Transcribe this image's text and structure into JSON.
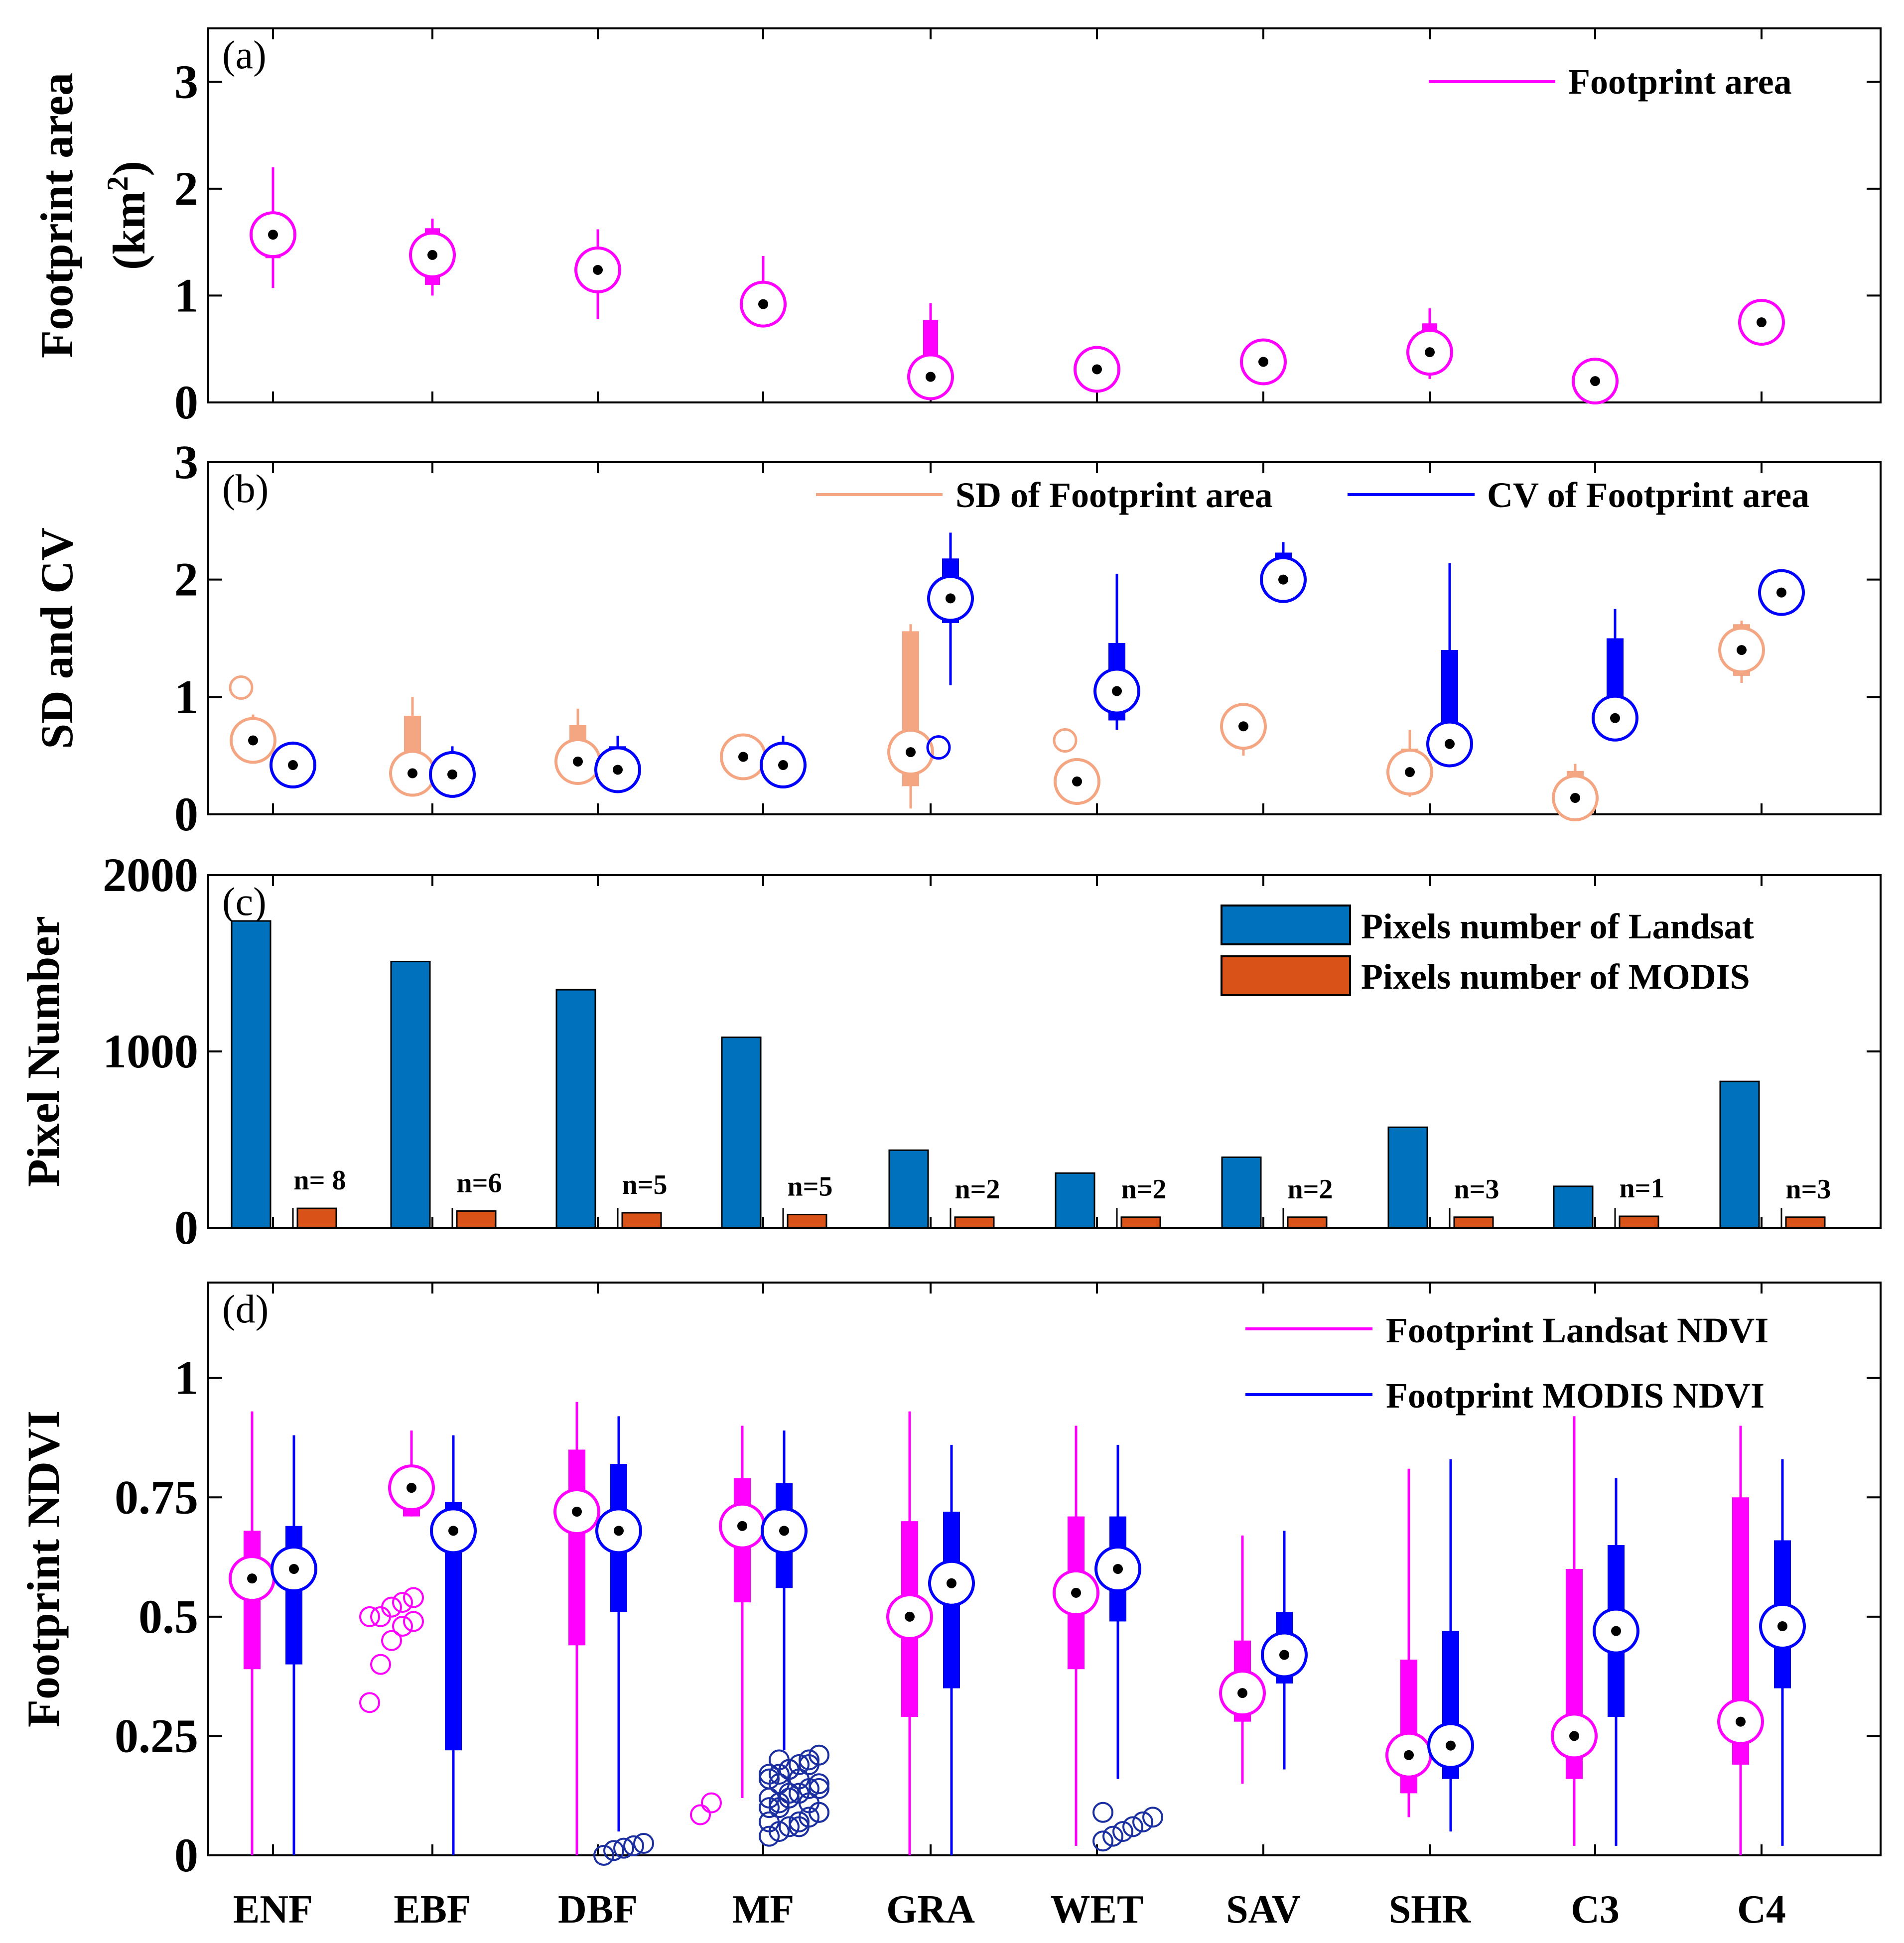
{
  "colors": {
    "fp_area": "#ff00ff",
    "sd": "#f4a582",
    "cv": "#0000ff",
    "cv_dark": "#0a1d8f",
    "landsat_bar": "#0072bd",
    "modis_bar": "#d95319",
    "ndvi_landsat": "#ff00ff",
    "ndvi_modis": "#0000ff",
    "modis_outlier": "#1b2fa0"
  },
  "chart_data": [
    {
      "type": "box",
      "panel_label": "(a)",
      "ylabel_line1": "Footprint area",
      "ylabel_line2": "(km",
      "ylabel_sup": "2",
      "ylabel_close": ")",
      "ylim": [
        0,
        3.5
      ],
      "yticks": [
        0,
        1,
        2,
        3
      ],
      "categories": [
        "ENF",
        "EBF",
        "DBF",
        "MF",
        "GRA",
        "WET",
        "SAV",
        "SHR",
        "C3",
        "C4"
      ],
      "legend": [
        {
          "label": "Footprint area",
          "color": "#ff00ff"
        }
      ],
      "series": [
        {
          "name": "Footprint area",
          "color": "#ff00ff",
          "boxes": [
            {
              "cat": 0,
              "wmin": 1.07,
              "q1": 1.35,
              "median": 1.57,
              "q3": 1.72,
              "wmax": 2.2
            },
            {
              "cat": 1,
              "wmin": 1.0,
              "q1": 1.1,
              "median": 1.38,
              "q3": 1.63,
              "wmax": 1.72
            },
            {
              "cat": 2,
              "wmin": 0.78,
              "q1": 1.05,
              "median": 1.24,
              "q3": 1.33,
              "wmax": 1.62
            },
            {
              "cat": 3,
              "wmin": 0.76,
              "q1": 0.83,
              "median": 0.92,
              "q3": 1.1,
              "wmax": 1.37
            },
            {
              "cat": 4,
              "wmin": 0.2,
              "q1": 0.23,
              "median": 0.24,
              "q3": 0.77,
              "wmax": 0.93
            },
            {
              "cat": 5,
              "wmin": 0.31,
              "q1": 0.31,
              "median": 0.31,
              "q3": 0.31,
              "wmax": 0.31
            },
            {
              "cat": 6,
              "wmin": 0.38,
              "q1": 0.38,
              "median": 0.38,
              "q3": 0.38,
              "wmax": 0.38
            },
            {
              "cat": 7,
              "wmin": 0.22,
              "q1": 0.27,
              "median": 0.47,
              "q3": 0.74,
              "wmax": 0.88
            },
            {
              "cat": 8,
              "wmin": 0.2,
              "q1": 0.2,
              "median": 0.2,
              "q3": 0.2,
              "wmax": 0.2
            },
            {
              "cat": 9,
              "wmin": 0.75,
              "q1": 0.75,
              "median": 0.75,
              "q3": 0.75,
              "wmax": 0.75
            }
          ]
        }
      ]
    },
    {
      "type": "box",
      "panel_label": "(b)",
      "ylabel": "SD and CV",
      "ylim": [
        0,
        3
      ],
      "yticks": [
        0,
        1,
        2,
        3
      ],
      "categories": [
        "ENF",
        "EBF",
        "DBF",
        "MF",
        "GRA",
        "WET",
        "SAV",
        "SHR",
        "C3",
        "C4"
      ],
      "legend": [
        {
          "label": "SD of Footprint area",
          "color": "#f4a582"
        },
        {
          "label": "CV of Footprint area",
          "color": "#0000ff"
        }
      ],
      "series": [
        {
          "name": "SD of Footprint area",
          "color": "#f4a582",
          "boxes": [
            {
              "cat": 0,
              "wmin": 0.55,
              "q1": 0.57,
              "median": 0.63,
              "q3": 0.66,
              "wmax": 0.85,
              "outliers": [
                1.08
              ]
            },
            {
              "cat": 1,
              "wmin": 0.3,
              "q1": 0.33,
              "median": 0.35,
              "q3": 0.84,
              "wmax": 1.0
            },
            {
              "cat": 2,
              "wmin": 0.4,
              "q1": 0.43,
              "median": 0.45,
              "q3": 0.76,
              "wmax": 0.9
            },
            {
              "cat": 3,
              "wmin": 0.3,
              "q1": 0.35,
              "median": 0.49,
              "q3": 0.52,
              "wmax": 0.55
            },
            {
              "cat": 4,
              "wmin": 0.05,
              "q1": 0.24,
              "median": 0.53,
              "q3": 1.56,
              "wmax": 1.62
            },
            {
              "cat": 5,
              "wmin": 0.28,
              "q1": 0.28,
              "median": 0.28,
              "q3": 0.28,
              "wmax": 0.28,
              "outliers": [
                0.63
              ]
            },
            {
              "cat": 6,
              "wmin": 0.5,
              "q1": 0.56,
              "median": 0.75,
              "q3": 0.9,
              "wmax": 0.95
            },
            {
              "cat": 7,
              "wmin": 0.15,
              "q1": 0.22,
              "median": 0.36,
              "q3": 0.56,
              "wmax": 0.72
            },
            {
              "cat": 8,
              "wmin": 0.1,
              "q1": 0.12,
              "median": 0.14,
              "q3": 0.37,
              "wmax": 0.43
            },
            {
              "cat": 9,
              "wmin": 1.12,
              "q1": 1.18,
              "median": 1.4,
              "q3": 1.62,
              "wmax": 1.65
            }
          ]
        },
        {
          "name": "CV of Footprint area",
          "color": "#0000ff",
          "boxes": [
            {
              "cat": 0,
              "wmin": 0.38,
              "q1": 0.39,
              "median": 0.42,
              "q3": 0.45,
              "wmax": 0.62
            },
            {
              "cat": 1,
              "wmin": 0.28,
              "q1": 0.3,
              "median": 0.34,
              "q3": 0.52,
              "wmax": 0.58
            },
            {
              "cat": 2,
              "wmin": 0.35,
              "q1": 0.36,
              "median": 0.38,
              "q3": 0.58,
              "wmax": 0.67
            },
            {
              "cat": 3,
              "wmin": 0.38,
              "q1": 0.4,
              "median": 0.42,
              "q3": 0.52,
              "wmax": 0.67
            },
            {
              "cat": 4,
              "wmin": 1.1,
              "q1": 1.63,
              "median": 1.84,
              "q3": 2.18,
              "wmax": 2.4,
              "outliers": [
                0.57
              ]
            },
            {
              "cat": 5,
              "wmin": 0.72,
              "q1": 0.8,
              "median": 1.05,
              "q3": 1.46,
              "wmax": 2.05
            },
            {
              "cat": 6,
              "wmin": 1.8,
              "q1": 1.85,
              "median": 2.0,
              "q3": 2.23,
              "wmax": 2.32
            },
            {
              "cat": 7,
              "wmin": 0.47,
              "q1": 0.52,
              "median": 0.6,
              "q3": 1.4,
              "wmax": 2.14
            },
            {
              "cat": 8,
              "wmin": 0.76,
              "q1": 0.78,
              "median": 0.82,
              "q3": 1.5,
              "wmax": 1.75
            },
            {
              "cat": 9,
              "wmin": 1.78,
              "q1": 1.8,
              "median": 1.89,
              "q3": 1.98,
              "wmax": 2.0
            }
          ]
        }
      ]
    },
    {
      "type": "bar",
      "panel_label": "(c)",
      "ylabel": "Pixel Number",
      "ylim": [
        0,
        2000
      ],
      "yticks": [
        0,
        1000,
        2000
      ],
      "categories": [
        "ENF",
        "EBF",
        "DBF",
        "MF",
        "GRA",
        "WET",
        "SAV",
        "SHR",
        "C3",
        "C4"
      ],
      "legend": [
        {
          "label": "Pixels number of Landsat",
          "color": "#0072bd"
        },
        {
          "label": "Pixels number of MODIS",
          "color": "#d95319"
        }
      ],
      "series": [
        {
          "name": "Pixels number of Landsat",
          "color": "#0072bd",
          "values": [
            1740,
            1510,
            1350,
            1080,
            440,
            310,
            400,
            570,
            235,
            830
          ]
        },
        {
          "name": "Pixels number of MODIS",
          "color": "#d95319",
          "values": [
            110,
            95,
            85,
            75,
            60,
            60,
            60,
            60,
            65,
            60
          ]
        }
      ],
      "annotations": [
        "n= 8",
        "n=6",
        "n=5",
        "n=5",
        "n=2",
        "n=2",
        "n=2",
        "n=3",
        "n=1",
        "n=3"
      ]
    },
    {
      "type": "box",
      "panel_label": "(d)",
      "ylabel": "Footprint NDVI",
      "ylim": [
        0,
        1.2
      ],
      "yticks": [
        0,
        0.25,
        0.5,
        0.75,
        1
      ],
      "ytick_labels": [
        "0",
        "0.25",
        "0.5",
        "0.75",
        "1"
      ],
      "categories": [
        "ENF",
        "EBF",
        "DBF",
        "MF",
        "GRA",
        "WET",
        "SAV",
        "SHR",
        "C3",
        "C4"
      ],
      "legend": [
        {
          "label": "Footprint Landsat NDVI",
          "color": "#ff00ff"
        },
        {
          "label": "Footprint MODIS NDVI",
          "color": "#0000ff"
        }
      ],
      "series": [
        {
          "name": "Footprint Landsat NDVI",
          "color": "#ff00ff",
          "boxes": [
            {
              "cat": 0,
              "wmin": 0.0,
              "q1": 0.39,
              "median": 0.58,
              "q3": 0.68,
              "wmax": 0.93
            },
            {
              "cat": 1,
              "wmin": 0.71,
              "q1": 0.71,
              "median": 0.77,
              "q3": 0.81,
              "wmax": 0.89,
              "outliers": [
                0.32,
                0.4,
                0.45,
                0.48,
                0.49,
                0.5,
                0.5,
                0.52,
                0.53,
                0.54
              ]
            },
            {
              "cat": 2,
              "wmin": 0.0,
              "q1": 0.44,
              "median": 0.72,
              "q3": 0.85,
              "wmax": 0.95
            },
            {
              "cat": 3,
              "wmin": 0.12,
              "q1": 0.53,
              "median": 0.69,
              "q3": 0.79,
              "wmax": 0.9,
              "outliers": [
                0.085,
                0.11
              ]
            },
            {
              "cat": 4,
              "wmin": 0.0,
              "q1": 0.29,
              "median": 0.5,
              "q3": 0.7,
              "wmax": 0.93
            },
            {
              "cat": 5,
              "wmin": 0.02,
              "q1": 0.39,
              "median": 0.55,
              "q3": 0.71,
              "wmax": 0.9
            },
            {
              "cat": 6,
              "wmin": 0.15,
              "q1": 0.28,
              "median": 0.34,
              "q3": 0.45,
              "wmax": 0.67
            },
            {
              "cat": 7,
              "wmin": 0.08,
              "q1": 0.13,
              "median": 0.21,
              "q3": 0.41,
              "wmax": 0.81
            },
            {
              "cat": 8,
              "wmin": 0.02,
              "q1": 0.16,
              "median": 0.25,
              "q3": 0.6,
              "wmax": 0.92
            },
            {
              "cat": 9,
              "wmin": 0.0,
              "q1": 0.19,
              "median": 0.28,
              "q3": 0.75,
              "wmax": 0.9
            }
          ]
        },
        {
          "name": "Footprint MODIS NDVI",
          "color": "#0000ff",
          "boxes": [
            {
              "cat": 0,
              "wmin": 0.0,
              "q1": 0.4,
              "median": 0.6,
              "q3": 0.69,
              "wmax": 0.88
            },
            {
              "cat": 1,
              "wmin": 0.0,
              "q1": 0.22,
              "median": 0.68,
              "q3": 0.74,
              "wmax": 0.88
            },
            {
              "cat": 2,
              "wmin": 0.05,
              "q1": 0.51,
              "median": 0.68,
              "q3": 0.82,
              "wmax": 0.92,
              "outliers": [
                0.0,
                0.01,
                0.015,
                0.02,
                0.025
              ]
            },
            {
              "cat": 3,
              "wmin": 0.22,
              "q1": 0.56,
              "median": 0.68,
              "q3": 0.78,
              "wmax": 0.89,
              "outliers": [
                0.04,
                0.05,
                0.06,
                0.07,
                0.08,
                0.09,
                0.1,
                0.11,
                0.12,
                0.13,
                0.14,
                0.15,
                0.16,
                0.17,
                0.18,
                0.19,
                0.2,
                0.21,
                0.07,
                0.1,
                0.13,
                0.16,
                0.19,
                0.09,
                0.12,
                0.15,
                0.18,
                0.06,
                0.11,
                0.14,
                0.17,
                0.2
              ]
            },
            {
              "cat": 4,
              "wmin": 0.0,
              "q1": 0.35,
              "median": 0.57,
              "q3": 0.72,
              "wmax": 0.86
            },
            {
              "cat": 5,
              "wmin": 0.16,
              "q1": 0.49,
              "median": 0.6,
              "q3": 0.71,
              "wmax": 0.86,
              "outliers": [
                0.03,
                0.04,
                0.05,
                0.06,
                0.07,
                0.08,
                0.09
              ]
            },
            {
              "cat": 6,
              "wmin": 0.18,
              "q1": 0.36,
              "median": 0.42,
              "q3": 0.51,
              "wmax": 0.68
            },
            {
              "cat": 7,
              "wmin": 0.05,
              "q1": 0.16,
              "median": 0.23,
              "q3": 0.47,
              "wmax": 0.83
            },
            {
              "cat": 8,
              "wmin": 0.02,
              "q1": 0.29,
              "median": 0.47,
              "q3": 0.65,
              "wmax": 0.79
            },
            {
              "cat": 9,
              "wmin": 0.02,
              "q1": 0.35,
              "median": 0.48,
              "q3": 0.66,
              "wmax": 0.83
            }
          ]
        }
      ]
    }
  ]
}
